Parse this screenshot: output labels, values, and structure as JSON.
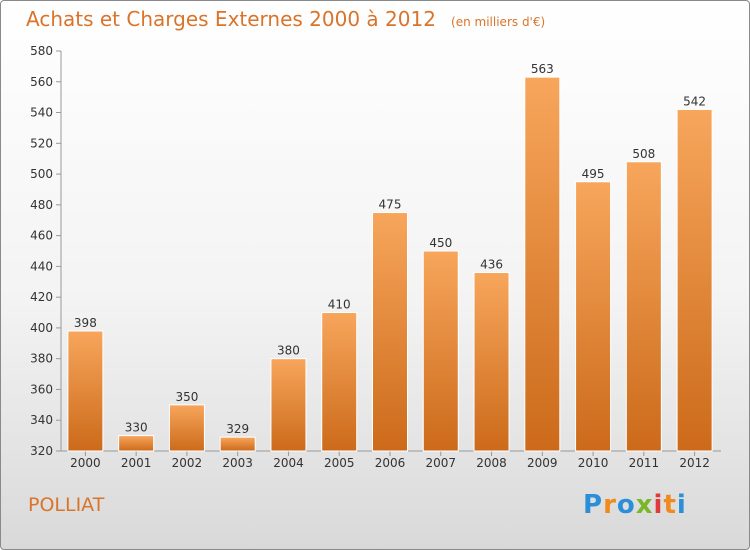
{
  "header": {
    "title": "Achats et Charges Externes 2000 à 2012",
    "unit": "(en milliers d'€)"
  },
  "footer": {
    "commune": "POLLIAT",
    "logo_letters": [
      "P",
      "r",
      "o",
      "x",
      "i",
      "t",
      "i"
    ],
    "logo_colors": [
      "#2a8fd8",
      "#f08a1c",
      "#2a8fd8",
      "#78b72a",
      "#e03a3a",
      "#f08a1c",
      "#2a8fd8"
    ]
  },
  "colors": {
    "accent": "#d9742a",
    "bar_light": "#f7a65c",
    "bar_dark": "#cc6a1a"
  },
  "chart_data": {
    "type": "bar",
    "title": "Achats et Charges Externes 2000 à 2012",
    "subtitle": "(en milliers d'€)",
    "xlabel": "",
    "ylabel": "",
    "categories": [
      "2000",
      "2001",
      "2002",
      "2003",
      "2004",
      "2005",
      "2006",
      "2007",
      "2008",
      "2009",
      "2010",
      "2011",
      "2012"
    ],
    "values": [
      398,
      330,
      350,
      329,
      380,
      410,
      475,
      450,
      436,
      563,
      495,
      508,
      542
    ],
    "ylim": [
      320,
      580
    ],
    "yticks": [
      320,
      340,
      360,
      380,
      400,
      420,
      440,
      460,
      480,
      500,
      520,
      540,
      560,
      580
    ],
    "grid": false,
    "legend": "none"
  }
}
